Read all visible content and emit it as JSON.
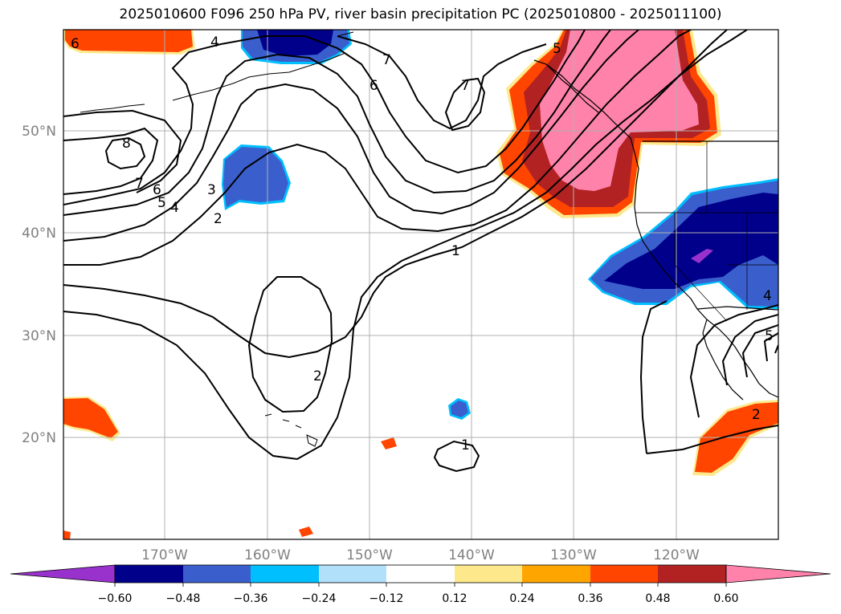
{
  "title": "2025010600 F096 250 hPa PV, river basin precipitation PC (2025010800 - 2025011100)",
  "map": {
    "lon_labels": [
      "170°W",
      "160°W",
      "150°W",
      "140°W",
      "130°W",
      "120°W"
    ],
    "lat_labels": [
      "50°N",
      "40°N",
      "30°N",
      "20°N"
    ],
    "contour_labels": [
      "6",
      "4",
      "7",
      "6",
      "7",
      "5",
      "8",
      "7",
      "6",
      "5",
      "4",
      "3",
      "2",
      "1",
      "2",
      "1",
      "4",
      "5",
      "2"
    ],
    "colors": {
      "contour": "#000000",
      "grid": "#b0b0b0",
      "coast": "#000000"
    }
  },
  "colorbar": {
    "ticks": [
      "−0.60",
      "−0.48",
      "−0.36",
      "−0.24",
      "−0.12",
      "0.12",
      "0.24",
      "0.36",
      "0.48",
      "0.60"
    ],
    "colors": [
      "#9932cc",
      "#00008b",
      "#3a5fcd",
      "#00bfff",
      "#b0e0fa",
      "#ffffff",
      "#fde98c",
      "#ffa500",
      "#ff4500",
      "#b22222",
      "#ff82ab"
    ]
  }
}
